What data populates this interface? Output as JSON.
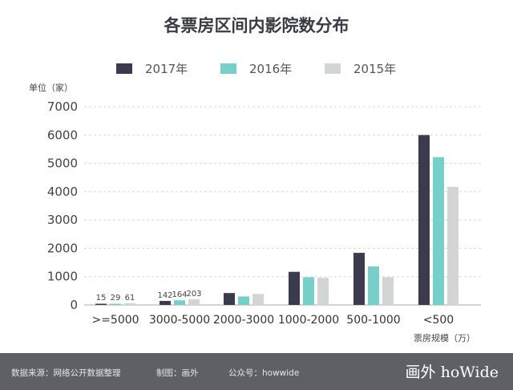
{
  "chart_data": {
    "type": "bar",
    "title": "各票房区间内影院数分布",
    "ylabel": "单位（家）",
    "xlabel": "票房规模（万）",
    "ylim": [
      0,
      7000
    ],
    "yticks": [
      0,
      1000,
      2000,
      3000,
      4000,
      5000,
      6000,
      7000
    ],
    "categories": [
      ">=5000",
      "3000-5000",
      "2000-3000",
      "1000-2000",
      "500-1000",
      "<500"
    ],
    "series": [
      {
        "name": "2017年",
        "color": "#3b3b4d",
        "values": [
          15,
          142,
          420,
          1170,
          1840,
          6000
        ]
      },
      {
        "name": "2016年",
        "color": "#76cfc9",
        "values": [
          29,
          164,
          300,
          980,
          1360,
          5220
        ]
      },
      {
        "name": "2015年",
        "color": "#d3d5d5",
        "values": [
          61,
          203,
          390,
          960,
          980,
          4170
        ]
      }
    ],
    "data_labels": [
      {
        "category": ">=5000",
        "labels": [
          "15",
          "29",
          "61"
        ]
      },
      {
        "category": "3000-5000",
        "labels": [
          "142",
          "164",
          "203"
        ]
      }
    ],
    "grid": true
  },
  "footer": {
    "source": "数据来源：网络公开数据整理",
    "maker": "制图：画外",
    "account": "公众号：howwide",
    "brand": "画外 hoWide"
  }
}
